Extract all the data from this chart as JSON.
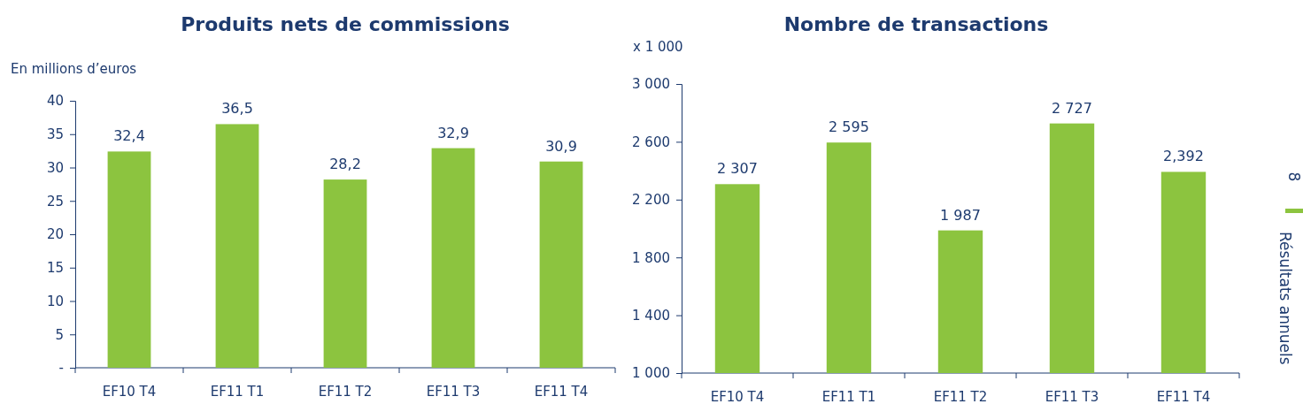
{
  "chart_data": [
    {
      "type": "bar",
      "title": "Produits nets de commissions",
      "ylabel": "En millions d’euros",
      "categories": [
        "EF10 T4",
        "EF11 T1",
        "EF11 T2",
        "EF11 T3",
        "EF11 T4"
      ],
      "values": [
        32.4,
        36.5,
        28.2,
        32.9,
        30.9
      ],
      "value_labels": [
        "32,4",
        "36,5",
        "28,2",
        "32,9",
        "30,9"
      ],
      "color": "#8cc43f",
      "ylim": [
        0,
        40
      ],
      "yticks": [
        {
          "value": 0,
          "label": "-"
        },
        5,
        10,
        15,
        20,
        25,
        30,
        35,
        40
      ],
      "grid": false
    },
    {
      "type": "bar",
      "title": "Nombre de transactions",
      "ylabel": "x 1 000",
      "categories": [
        "EF10 T4",
        "EF11 T1",
        "EF11 T2",
        "EF11 T3",
        "EF11 T4"
      ],
      "values": [
        2307,
        2595,
        1987,
        2727,
        2392
      ],
      "value_labels": [
        "2 307",
        "2 595",
        "1 987",
        "2 727",
        "2,392"
      ],
      "color": "#8cc43f",
      "ylim": [
        1000,
        3000
      ],
      "yticks": [
        {
          "value": 1000,
          "label": "1 000"
        },
        {
          "value": 1400,
          "label": "1 400"
        },
        {
          "value": 1800,
          "label": "1 800"
        },
        {
          "value": 2200,
          "label": "2 200"
        },
        {
          "value": 2600,
          "label": "2 600"
        },
        {
          "value": 3000,
          "label": "3 000"
        }
      ],
      "grid": false,
      "annotations": [
        "8",
        "Résultats annuels"
      ]
    }
  ]
}
